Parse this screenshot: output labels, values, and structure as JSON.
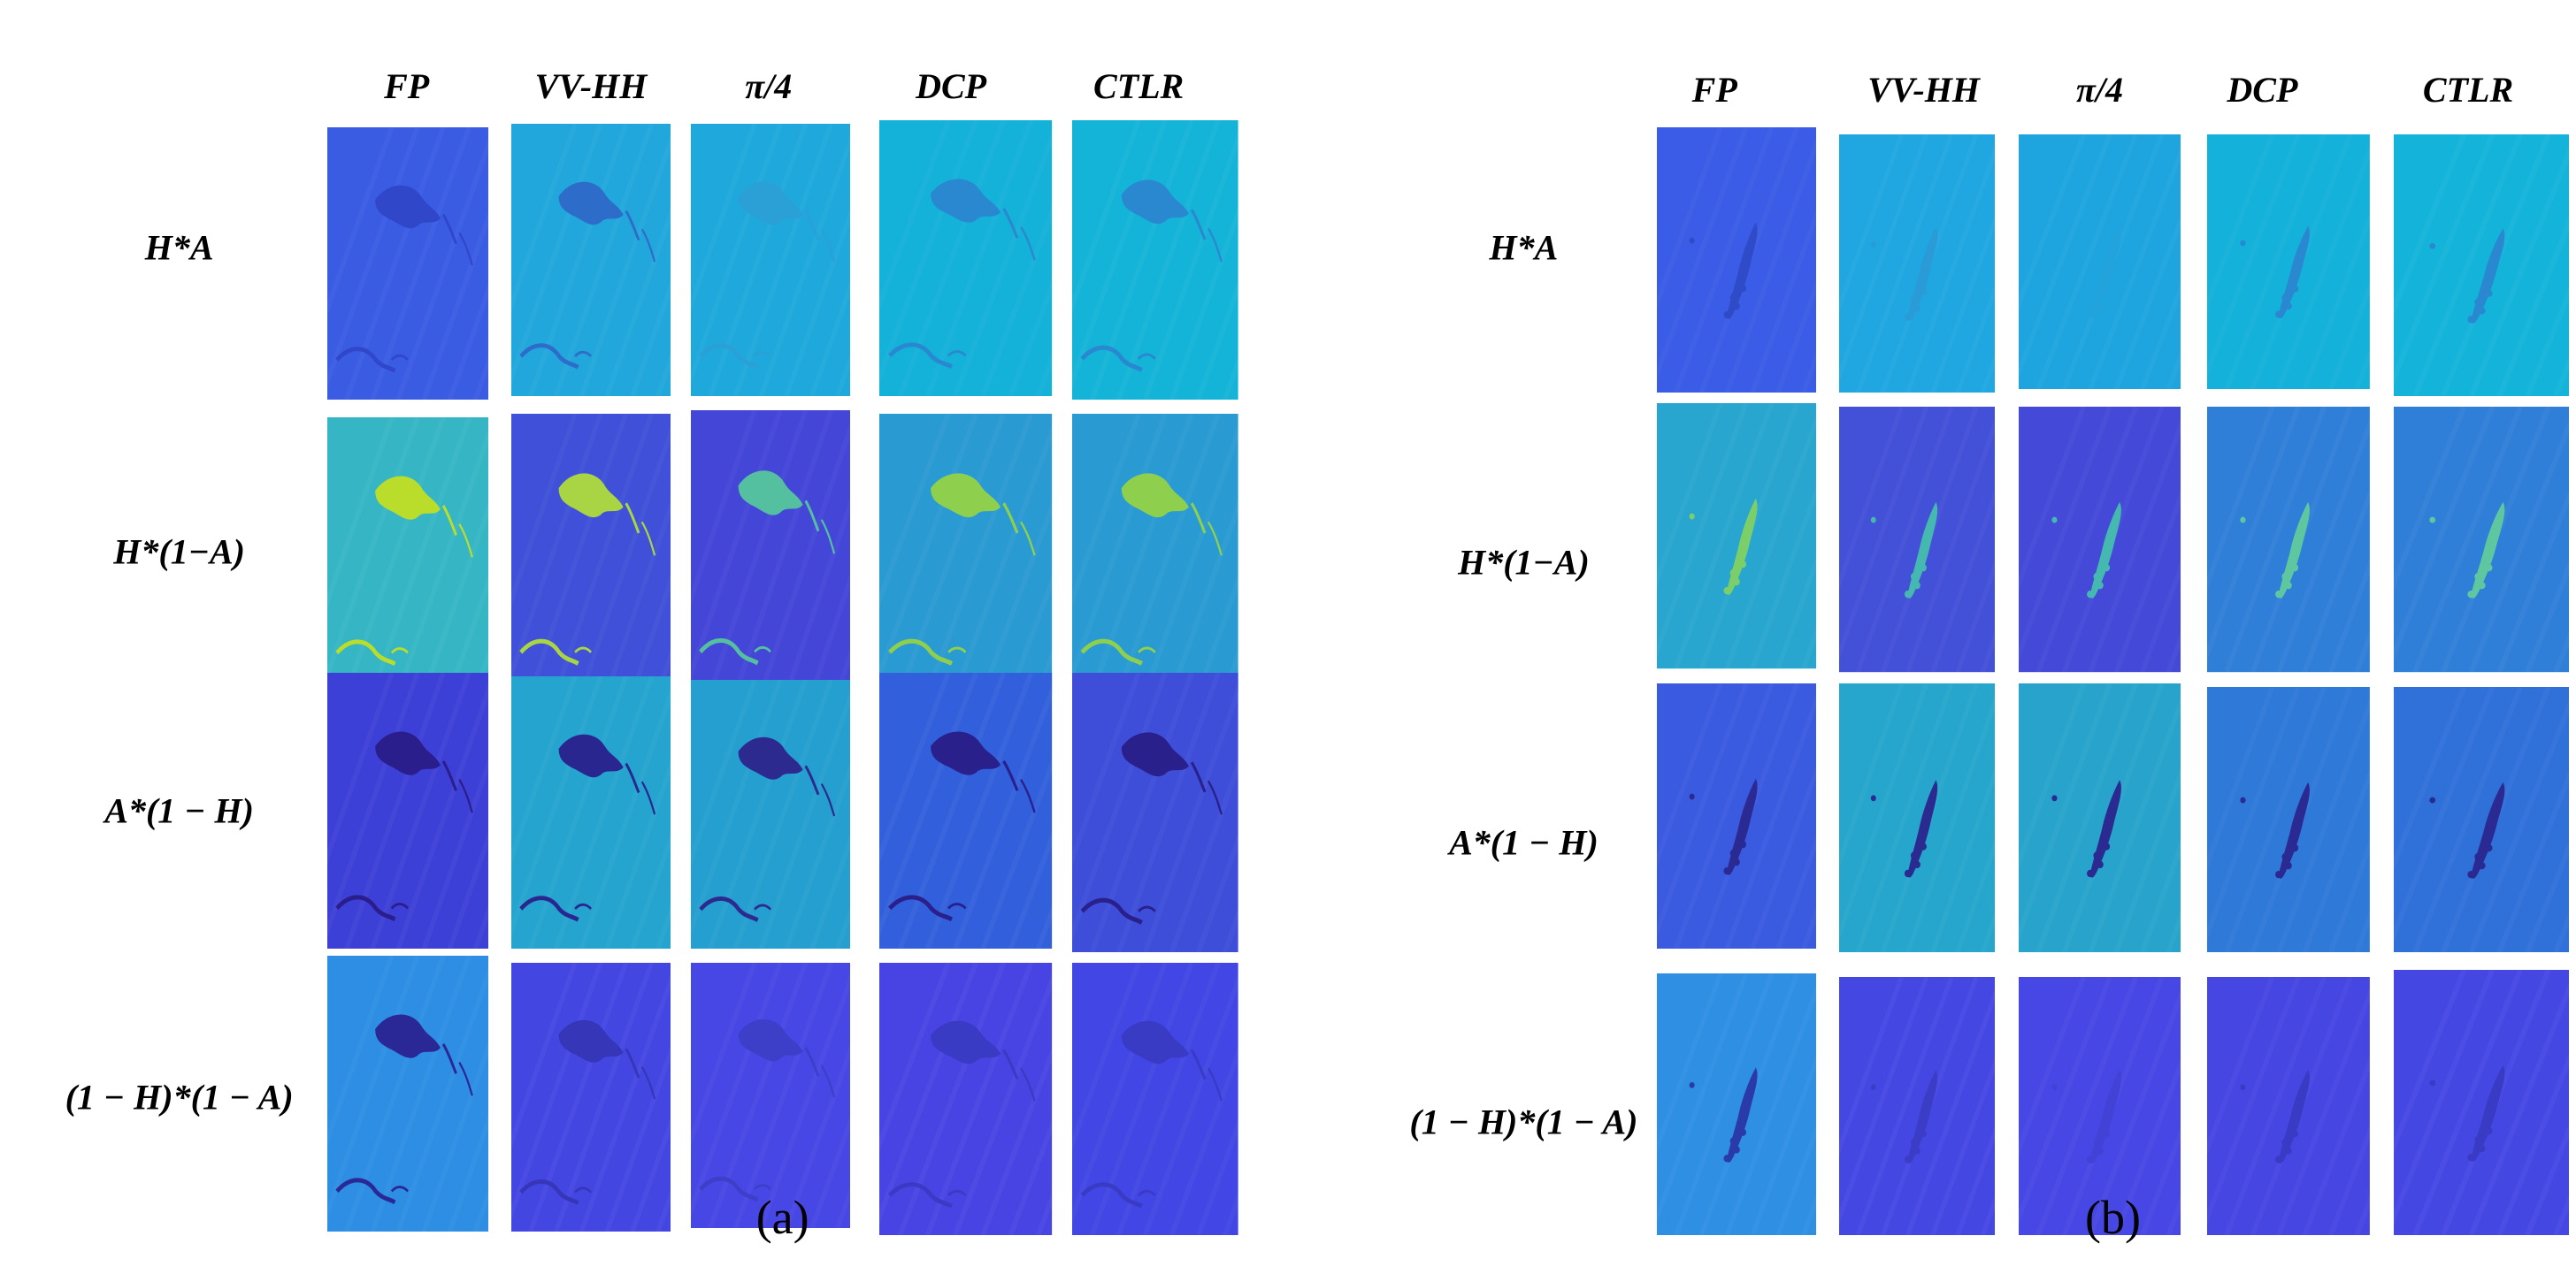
{
  "panels": [
    {
      "id": "a",
      "caption": "(a)",
      "columns": [
        "FP",
        "VV-HH",
        "π/4",
        "DCP",
        "CTLR"
      ],
      "rows": [
        "H*A",
        "H*(1−A)",
        "A*(1 − H)",
        "(1 − H)*(1 − A)"
      ],
      "tile_colors": [
        [
          "#3a5ce3",
          "#22a7dc",
          "#1fa8dc",
          "#14b1d9",
          "#14b4d8"
        ],
        [
          "#36b6c4",
          "#4050d8",
          "#4446d8",
          "#2a9ad2",
          "#2a9bd2"
        ],
        [
          "#3d40d6",
          "#25a4cf",
          "#259fd0",
          "#3260dc",
          "#3e4ed9"
        ],
        [
          "#2d8ee3",
          "#4446e2",
          "#4747e5",
          "#4844e4",
          "#4146e4"
        ]
      ],
      "feature_colors": [
        [
          "#2f47c8",
          "#2e6cc9",
          "#2aa0d6",
          "#2a88d0",
          "#2a88d0"
        ],
        [
          "#b9dd2a",
          "#a9d443",
          "#55c0a0",
          "#8fcf4e",
          "#8fcf4e"
        ],
        [
          "#2a1e8c",
          "#2a2690",
          "#2c2a8e",
          "#2a208c",
          "#2a208c"
        ],
        [
          "#2a2896",
          "#3536b8",
          "#3d3fc9",
          "#3a3bc4",
          "#3a3bc4"
        ]
      ]
    },
    {
      "id": "b",
      "caption": "(b)",
      "columns": [
        "FP",
        "VV-HH",
        "π/4",
        "DCP",
        "CTLR"
      ],
      "rows": [
        "H*A",
        "H*(1−A)",
        "A*(1 − H)",
        "(1 − H)*(1 − A)"
      ],
      "tile_colors": [
        [
          "#3a5ce6",
          "#20a6e0",
          "#1ea5df",
          "#14b1da",
          "#14b4da"
        ],
        [
          "#28a6cf",
          "#4350d8",
          "#4449d8",
          "#2f7fd8",
          "#2f7fd8"
        ],
        [
          "#3a5ae0",
          "#26a6cc",
          "#28a4cc",
          "#2f79d9",
          "#3070d9"
        ],
        [
          "#2e8fe3",
          "#4547e3",
          "#4747e6",
          "#4646e3",
          "#4547e3"
        ]
      ],
      "feature_colors": [
        [
          "#2f4bc8",
          "#2a9bd6",
          "#22a3dc",
          "#2a88d0",
          "#2a88d0"
        ],
        [
          "#7ccf68",
          "#45b8b0",
          "#45b8b0",
          "#5fc7a0",
          "#5fc7a0"
        ],
        [
          "#2a2a92",
          "#2a2a90",
          "#2a2a90",
          "#2a2a92",
          "#2a2a92"
        ],
        [
          "#2a3aa8",
          "#3c3dc7",
          "#4242d6",
          "#3a3bc4",
          "#3a3bc4"
        ]
      ]
    }
  ]
}
